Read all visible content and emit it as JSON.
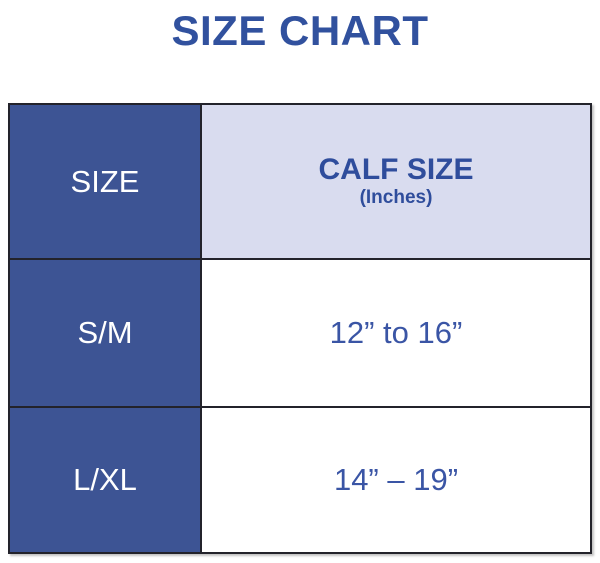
{
  "title": "SIZE CHART",
  "colors": {
    "title_text": "#31519E",
    "left_column_bg": "#3D5494",
    "left_column_text": "#FFFFFF",
    "calf_header_bg": "#D9DCEF",
    "calf_header_text": "#2F4D9C",
    "value_text": "#3A55A5",
    "border": "#23232B"
  },
  "table": {
    "columns": [
      {
        "label": "SIZE"
      },
      {
        "label": "CALF SIZE",
        "sublabel": "(Inches)"
      }
    ],
    "rows": [
      {
        "size": "S/M",
        "calf_size": "12” to 16”"
      },
      {
        "size": "L/XL",
        "calf_size": "14” – 19”"
      }
    ]
  },
  "chart_data": {
    "type": "table",
    "title": "SIZE CHART",
    "columns": [
      "SIZE",
      "CALF SIZE (Inches)"
    ],
    "rows": [
      [
        "S/M",
        "12” to 16”"
      ],
      [
        "L/XL",
        "14” – 19”"
      ]
    ],
    "legend_position": "none",
    "grid": true
  }
}
